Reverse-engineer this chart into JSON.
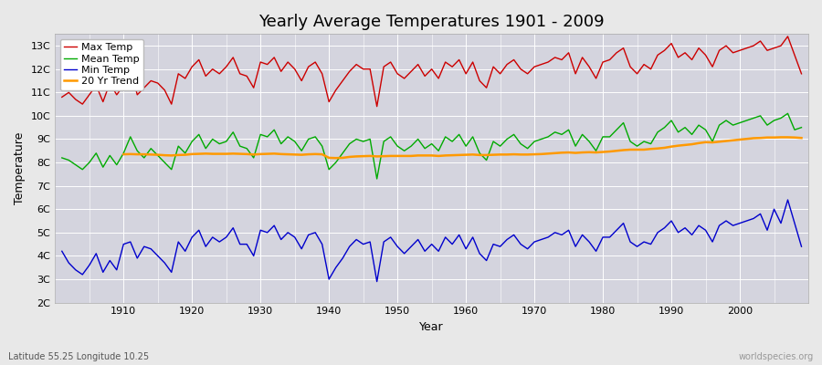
{
  "title": "Yearly Average Temperatures 1901 - 2009",
  "xlabel": "Year",
  "ylabel": "Temperature",
  "lat_lon_label": "Latitude 55.25 Longitude 10.25",
  "watermark": "worldspecies.org",
  "years": [
    1901,
    1902,
    1903,
    1904,
    1905,
    1906,
    1907,
    1908,
    1909,
    1910,
    1911,
    1912,
    1913,
    1914,
    1915,
    1916,
    1917,
    1918,
    1919,
    1920,
    1921,
    1922,
    1923,
    1924,
    1925,
    1926,
    1927,
    1928,
    1929,
    1930,
    1931,
    1932,
    1933,
    1934,
    1935,
    1936,
    1937,
    1938,
    1939,
    1940,
    1941,
    1942,
    1943,
    1944,
    1945,
    1946,
    1947,
    1948,
    1949,
    1950,
    1951,
    1952,
    1953,
    1954,
    1955,
    1956,
    1957,
    1958,
    1959,
    1960,
    1961,
    1962,
    1963,
    1964,
    1965,
    1966,
    1967,
    1968,
    1969,
    1970,
    1971,
    1972,
    1973,
    1974,
    1975,
    1976,
    1977,
    1978,
    1979,
    1980,
    1981,
    1982,
    1983,
    1984,
    1985,
    1986,
    1987,
    1988,
    1989,
    1990,
    1991,
    1992,
    1993,
    1994,
    1995,
    1996,
    1997,
    1998,
    1999,
    2000,
    2001,
    2002,
    2003,
    2004,
    2005,
    2006,
    2007,
    2008,
    2009
  ],
  "max_temp": [
    10.8,
    11.0,
    10.7,
    10.5,
    10.9,
    11.3,
    10.6,
    11.4,
    10.9,
    11.3,
    12.1,
    10.9,
    11.2,
    11.5,
    11.4,
    11.1,
    10.5,
    11.8,
    11.6,
    12.1,
    12.4,
    11.7,
    12.0,
    11.8,
    12.1,
    12.5,
    11.8,
    11.7,
    11.2,
    12.3,
    12.2,
    12.5,
    11.9,
    12.3,
    12.0,
    11.5,
    12.1,
    12.3,
    11.8,
    10.6,
    11.1,
    11.5,
    11.9,
    12.2,
    12.0,
    12.0,
    10.4,
    12.1,
    12.3,
    11.8,
    11.6,
    11.9,
    12.2,
    11.7,
    12.0,
    11.6,
    12.3,
    12.1,
    12.4,
    11.8,
    12.3,
    11.5,
    11.2,
    12.1,
    11.8,
    12.2,
    12.4,
    12.0,
    11.8,
    12.1,
    12.2,
    12.3,
    12.5,
    12.4,
    12.7,
    11.8,
    12.5,
    12.1,
    11.6,
    12.3,
    12.4,
    12.7,
    12.9,
    12.1,
    11.8,
    12.2,
    12.0,
    12.6,
    12.8,
    13.1,
    12.5,
    12.7,
    12.4,
    12.9,
    12.6,
    12.1,
    12.8,
    13.0,
    12.7,
    12.8,
    12.9,
    13.0,
    13.2,
    12.8,
    12.9,
    13.0,
    13.4,
    12.6,
    11.8
  ],
  "mean_temp": [
    8.2,
    8.1,
    7.9,
    7.7,
    8.0,
    8.4,
    7.8,
    8.3,
    7.9,
    8.4,
    9.1,
    8.5,
    8.2,
    8.6,
    8.3,
    8.0,
    7.7,
    8.7,
    8.4,
    8.9,
    9.2,
    8.6,
    9.0,
    8.8,
    8.9,
    9.3,
    8.7,
    8.6,
    8.2,
    9.2,
    9.1,
    9.4,
    8.8,
    9.1,
    8.9,
    8.5,
    9.0,
    9.1,
    8.7,
    7.7,
    8.0,
    8.4,
    8.8,
    9.0,
    8.9,
    9.0,
    7.3,
    8.9,
    9.1,
    8.7,
    8.5,
    8.7,
    9.0,
    8.6,
    8.8,
    8.5,
    9.1,
    8.9,
    9.2,
    8.7,
    9.1,
    8.4,
    8.1,
    8.9,
    8.7,
    9.0,
    9.2,
    8.8,
    8.6,
    8.9,
    9.0,
    9.1,
    9.3,
    9.2,
    9.4,
    8.7,
    9.2,
    8.9,
    8.5,
    9.1,
    9.1,
    9.4,
    9.7,
    8.9,
    8.7,
    8.9,
    8.8,
    9.3,
    9.5,
    9.8,
    9.3,
    9.5,
    9.2,
    9.6,
    9.4,
    8.9,
    9.6,
    9.8,
    9.6,
    9.7,
    9.8,
    9.9,
    10.0,
    9.6,
    9.8,
    9.9,
    10.1,
    9.4,
    9.5
  ],
  "min_temp": [
    4.2,
    3.7,
    3.4,
    3.2,
    3.6,
    4.1,
    3.3,
    3.8,
    3.4,
    4.5,
    4.6,
    3.9,
    4.4,
    4.3,
    4.0,
    3.7,
    3.3,
    4.6,
    4.2,
    4.8,
    5.1,
    4.4,
    4.8,
    4.6,
    4.8,
    5.2,
    4.5,
    4.5,
    4.0,
    5.1,
    5.0,
    5.3,
    4.7,
    5.0,
    4.8,
    4.3,
    4.9,
    5.0,
    4.5,
    3.0,
    3.5,
    3.9,
    4.4,
    4.7,
    4.5,
    4.6,
    2.9,
    4.6,
    4.8,
    4.4,
    4.1,
    4.4,
    4.7,
    4.2,
    4.5,
    4.2,
    4.8,
    4.5,
    4.9,
    4.3,
    4.8,
    4.1,
    3.8,
    4.5,
    4.4,
    4.7,
    4.9,
    4.5,
    4.3,
    4.6,
    4.7,
    4.8,
    5.0,
    4.9,
    5.1,
    4.4,
    4.9,
    4.6,
    4.2,
    4.8,
    4.8,
    5.1,
    5.4,
    4.6,
    4.4,
    4.6,
    4.5,
    5.0,
    5.2,
    5.5,
    5.0,
    5.2,
    4.9,
    5.3,
    5.1,
    4.6,
    5.3,
    5.5,
    5.3,
    5.4,
    5.5,
    5.6,
    5.8,
    5.1,
    6.0,
    5.4,
    6.4,
    5.4,
    4.4
  ],
  "trend_years": [
    1910,
    1911,
    1912,
    1913,
    1914,
    1915,
    1916,
    1917,
    1918,
    1919,
    1920,
    1921,
    1922,
    1923,
    1924,
    1925,
    1926,
    1927,
    1928,
    1929,
    1930,
    1931,
    1932,
    1933,
    1934,
    1935,
    1936,
    1937,
    1938,
    1939,
    1940,
    1941,
    1942,
    1943,
    1944,
    1945,
    1946,
    1947,
    1948,
    1949,
    1950,
    1951,
    1952,
    1953,
    1954,
    1955,
    1956,
    1957,
    1958,
    1959,
    1960,
    1961,
    1962,
    1963,
    1964,
    1965,
    1966,
    1967,
    1968,
    1969,
    1970,
    1971,
    1972,
    1973,
    1974,
    1975,
    1976,
    1977,
    1978,
    1979,
    1980,
    1981,
    1982,
    1983,
    1984,
    1985,
    1986,
    1987,
    1988,
    1989,
    1990,
    1991,
    1992,
    1993,
    1994,
    1995,
    1996,
    1997,
    1998,
    1999,
    2000,
    2001,
    2002,
    2003,
    2004,
    2005,
    2006,
    2007,
    2008,
    2009
  ],
  "trend_vals": [
    8.35,
    8.36,
    8.35,
    8.35,
    8.34,
    8.33,
    8.31,
    8.3,
    8.32,
    8.33,
    8.36,
    8.37,
    8.38,
    8.37,
    8.37,
    8.37,
    8.38,
    8.37,
    8.36,
    8.34,
    8.36,
    8.37,
    8.38,
    8.36,
    8.35,
    8.34,
    8.33,
    8.35,
    8.36,
    8.35,
    8.2,
    8.19,
    8.2,
    8.24,
    8.26,
    8.27,
    8.28,
    8.26,
    8.27,
    8.28,
    8.28,
    8.28,
    8.28,
    8.3,
    8.3,
    8.3,
    8.28,
    8.3,
    8.31,
    8.32,
    8.33,
    8.34,
    8.32,
    8.32,
    8.33,
    8.34,
    8.34,
    8.35,
    8.34,
    8.34,
    8.35,
    8.36,
    8.38,
    8.4,
    8.42,
    8.43,
    8.41,
    8.43,
    8.44,
    8.43,
    8.45,
    8.47,
    8.5,
    8.53,
    8.55,
    8.55,
    8.55,
    8.58,
    8.6,
    8.63,
    8.68,
    8.72,
    8.75,
    8.78,
    8.83,
    8.87,
    8.86,
    8.89,
    8.92,
    8.95,
    8.98,
    9.01,
    9.04,
    9.05,
    9.07,
    9.07,
    9.08,
    9.08,
    9.07,
    9.05
  ],
  "max_color": "#cc0000",
  "mean_color": "#00aa00",
  "min_color": "#0000cc",
  "trend_color": "#ff9900",
  "bg_color": "#e8e8e8",
  "plot_bg_color": "#d4d4de",
  "grid_color": "#ffffff",
  "ylim": [
    2.0,
    13.5
  ],
  "yticks": [
    2,
    3,
    4,
    5,
    6,
    7,
    8,
    9,
    10,
    11,
    12,
    13
  ],
  "ytick_labels": [
    "2C",
    "3C",
    "4C",
    "5C",
    "6C",
    "7C",
    "8C",
    "9C",
    "10C",
    "11C",
    "12C",
    "13C"
  ],
  "xlim_left": 1900,
  "xlim_right": 2010,
  "xtick_values": [
    1910,
    1920,
    1930,
    1940,
    1950,
    1960,
    1970,
    1980,
    1990,
    2000
  ],
  "line_width": 1.0,
  "title_fontsize": 13,
  "axis_label_fontsize": 9,
  "tick_fontsize": 8,
  "legend_fontsize": 8
}
